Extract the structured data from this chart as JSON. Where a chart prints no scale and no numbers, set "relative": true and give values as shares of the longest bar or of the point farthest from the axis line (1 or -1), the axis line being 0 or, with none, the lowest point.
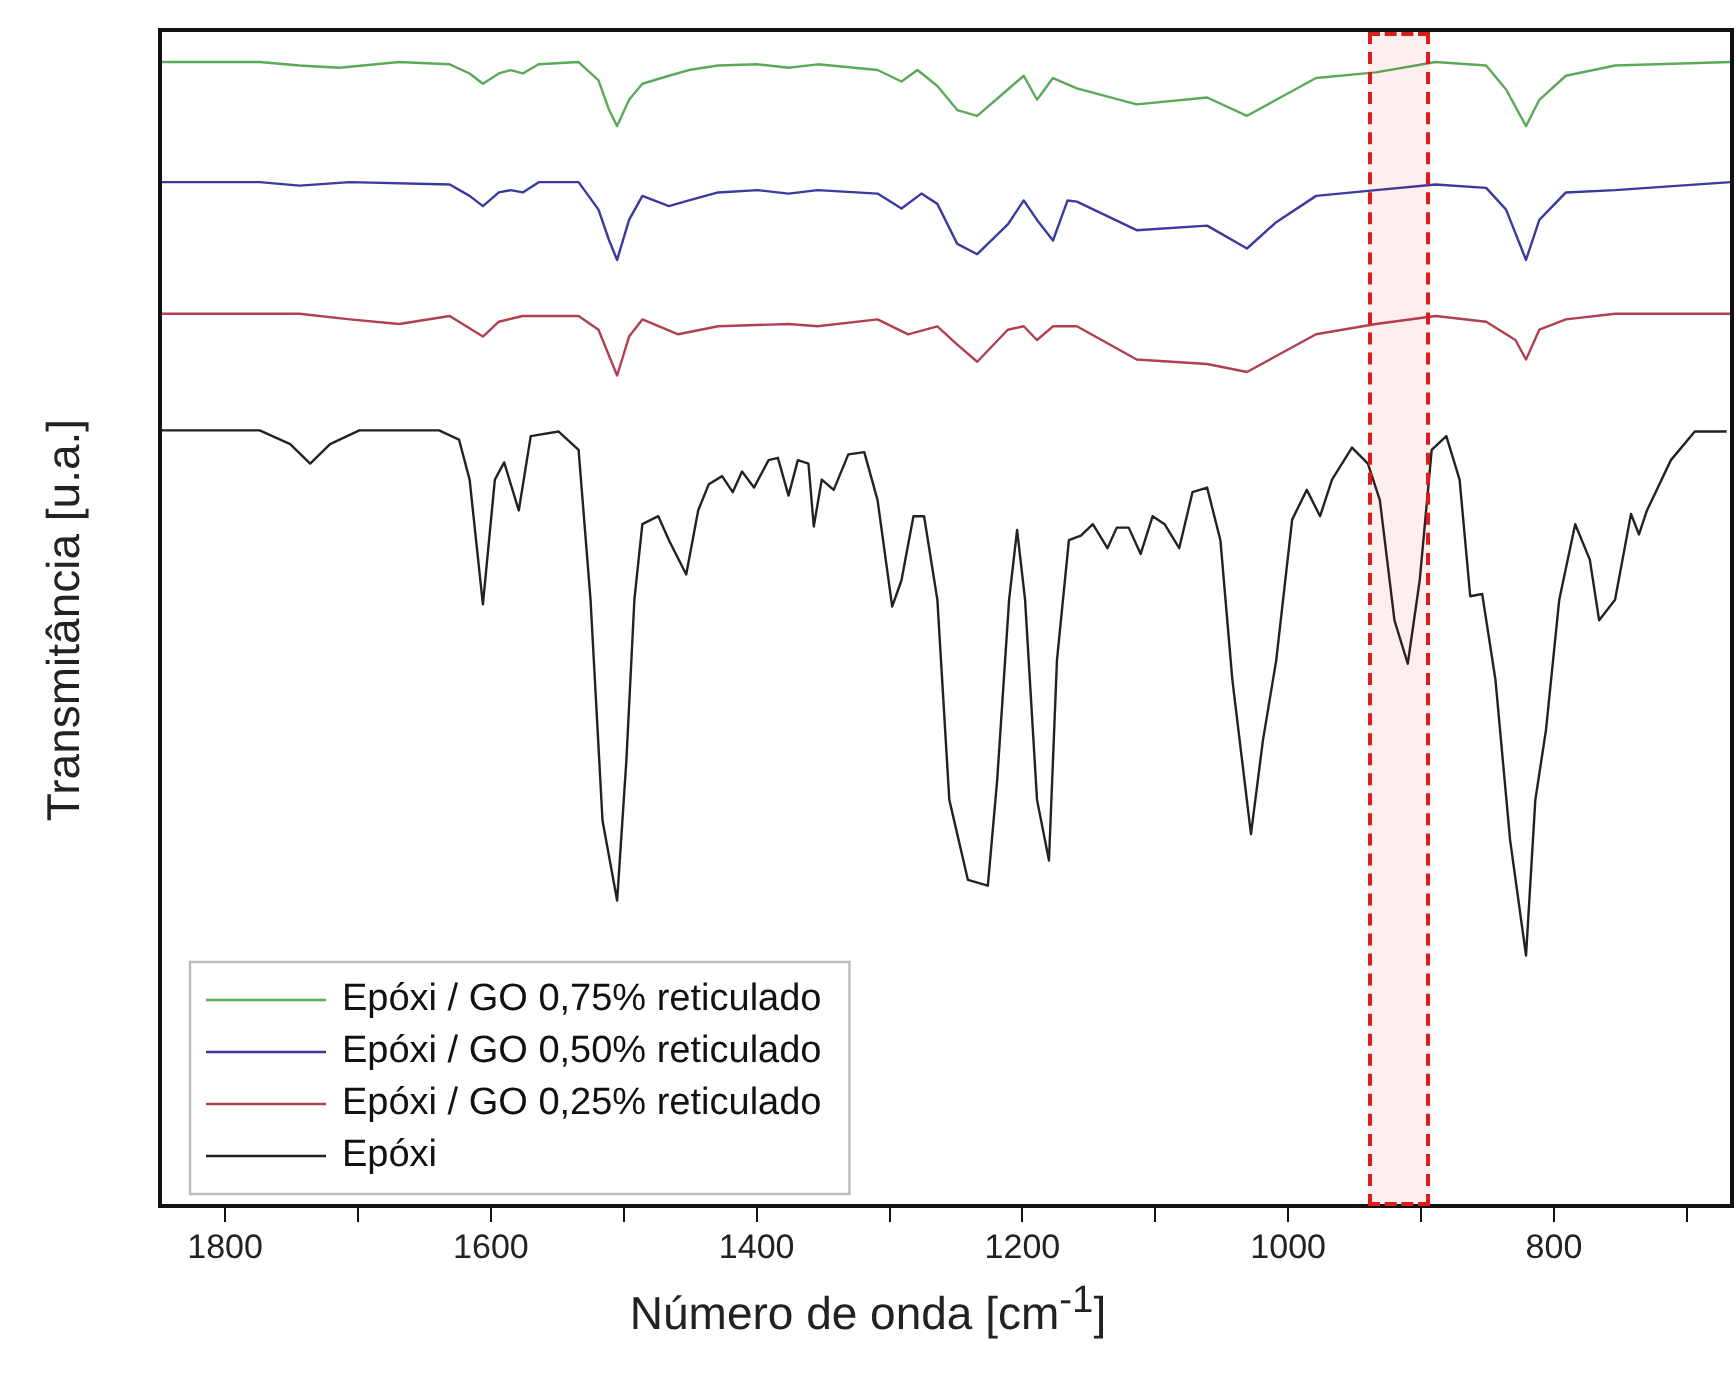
{
  "chart_data": {
    "type": "line",
    "xlabel": "Número de onda [cm$^{-1}$]",
    "ylabel": "Transmitância [u.a.]",
    "relative": true,
    "legend": "bottom left",
    "grid": false,
    "marker": "none",
    "line_style": "solid",
    "xlim": [
      1849,
      666
    ],
    "xticks": [
      1800,
      {
        "value": 1700,
        "label": null
      },
      1600,
      {
        "value": 1500,
        "label": null
      },
      1400,
      {
        "value": 1300,
        "label": null
      },
      1200,
      {
        "value": 1100,
        "label": null
      },
      1000,
      {
        "value": 900,
        "label": null
      },
      800,
      {
        "value": 700,
        "label": null
      }
    ],
    "bands": [
      {
        "axis": "x",
        "from": 940,
        "to": 893,
        "color": "#dd1c1c"
      }
    ],
    "series": [
      {
        "name": "Epóxi / GO 0,75% reticulado",
        "color": "#5aaa5a",
        "x": [
          1849,
          1774,
          1744,
          1714,
          1669,
          1631,
          1616,
          1606,
          1594,
          1585,
          1576,
          1564,
          1534,
          1519,
          1511,
          1505,
          1496,
          1486,
          1466,
          1451,
          1429,
          1399,
          1376,
          1354,
          1309,
          1291,
          1279,
          1264,
          1249,
          1234,
          1211,
          1199,
          1189,
          1177,
          1159,
          1114,
          1061,
          1031,
          1009,
          979,
          934,
          889,
          851,
          836,
          821,
          811,
          791,
          754,
          667
        ],
        "values": [
          1.0,
          1.0,
          0.997,
          0.995,
          1.0,
          0.998,
          0.99,
          0.981,
          0.99,
          0.993,
          0.99,
          0.998,
          1.0,
          0.984,
          0.958,
          0.944,
          0.967,
          0.981,
          0.988,
          0.993,
          0.997,
          0.998,
          0.995,
          0.998,
          0.993,
          0.983,
          0.993,
          0.979,
          0.958,
          0.953,
          0.976,
          0.988,
          0.967,
          0.986,
          0.977,
          0.963,
          0.969,
          0.953,
          0.967,
          0.986,
          0.991,
          1.0,
          0.997,
          0.976,
          0.944,
          0.967,
          0.988,
          0.997,
          1.0
        ]
      },
      {
        "name": "Epóxi / GO 0,50% reticulado",
        "color": "#3a3aa0",
        "x": [
          1849,
          1774,
          1744,
          1706,
          1631,
          1616,
          1606,
          1594,
          1585,
          1576,
          1564,
          1534,
          1519,
          1511,
          1505,
          1496,
          1486,
          1466,
          1451,
          1429,
          1399,
          1376,
          1354,
          1309,
          1291,
          1276,
          1264,
          1249,
          1234,
          1211,
          1199,
          1189,
          1177,
          1166,
          1159,
          1114,
          1061,
          1031,
          1009,
          979,
          934,
          889,
          851,
          836,
          821,
          811,
          791,
          754,
          667
        ],
        "values": [
          0.895,
          0.895,
          0.892,
          0.895,
          0.893,
          0.883,
          0.874,
          0.886,
          0.888,
          0.886,
          0.895,
          0.895,
          0.871,
          0.844,
          0.827,
          0.862,
          0.883,
          0.874,
          0.879,
          0.886,
          0.888,
          0.885,
          0.888,
          0.885,
          0.872,
          0.885,
          0.876,
          0.841,
          0.832,
          0.858,
          0.879,
          0.862,
          0.844,
          0.879,
          0.878,
          0.853,
          0.857,
          0.837,
          0.86,
          0.883,
          0.888,
          0.893,
          0.89,
          0.871,
          0.827,
          0.862,
          0.886,
          0.888,
          0.895
        ]
      },
      {
        "name": "Epóxi / GO 0,25% reticulado",
        "color": "#b04050",
        "x": [
          1849,
          1744,
          1706,
          1669,
          1631,
          1606,
          1594,
          1576,
          1534,
          1519,
          1511,
          1505,
          1496,
          1486,
          1459,
          1429,
          1376,
          1354,
          1309,
          1286,
          1264,
          1249,
          1234,
          1211,
          1199,
          1189,
          1177,
          1159,
          1114,
          1061,
          1031,
          1009,
          979,
          934,
          889,
          851,
          829,
          821,
          811,
          791,
          754,
          667
        ],
        "values": [
          0.78,
          0.78,
          0.775,
          0.771,
          0.778,
          0.76,
          0.773,
          0.778,
          0.778,
          0.766,
          0.743,
          0.726,
          0.76,
          0.775,
          0.762,
          0.769,
          0.771,
          0.769,
          0.775,
          0.762,
          0.769,
          0.753,
          0.738,
          0.766,
          0.769,
          0.757,
          0.769,
          0.769,
          0.74,
          0.736,
          0.729,
          0.743,
          0.762,
          0.771,
          0.778,
          0.773,
          0.757,
          0.74,
          0.766,
          0.775,
          0.78,
          0.78
        ]
      },
      {
        "name": "Epóxi",
        "color": "#222222",
        "x": [
          1849,
          1774,
          1751,
          1736,
          1721,
          1699,
          1639,
          1624,
          1616,
          1606,
          1597,
          1590,
          1579,
          1570,
          1549,
          1534,
          1525,
          1516,
          1505,
          1498,
          1492,
          1486,
          1474,
          1466,
          1453,
          1444,
          1436,
          1426,
          1418,
          1411,
          1402,
          1391,
          1384,
          1376,
          1369,
          1361,
          1357,
          1351,
          1342,
          1331,
          1319,
          1309,
          1298,
          1291,
          1282,
          1274,
          1264,
          1255,
          1241,
          1226,
          1219,
          1210,
          1204,
          1198,
          1189,
          1180,
          1174,
          1165,
          1156,
          1147,
          1136,
          1129,
          1120,
          1111,
          1102,
          1093,
          1082,
          1072,
          1061,
          1051,
          1042,
          1028,
          1019,
          1009,
          997,
          986,
          976,
          967,
          952,
          940,
          931,
          920,
          910,
          901,
          892,
          881,
          871,
          863,
          854,
          844,
          833,
          821,
          814,
          806,
          796,
          784,
          773,
          766,
          754,
          742,
          736,
          730,
          712,
          694,
          670
        ],
        "values": [
          0.678,
          0.678,
          0.666,
          0.649,
          0.666,
          0.678,
          0.678,
          0.67,
          0.635,
          0.526,
          0.635,
          0.65,
          0.608,
          0.673,
          0.677,
          0.661,
          0.53,
          0.337,
          0.267,
          0.39,
          0.53,
          0.596,
          0.603,
          0.582,
          0.552,
          0.608,
          0.631,
          0.638,
          0.624,
          0.642,
          0.628,
          0.652,
          0.654,
          0.621,
          0.652,
          0.649,
          0.594,
          0.635,
          0.626,
          0.657,
          0.659,
          0.617,
          0.524,
          0.547,
          0.603,
          0.603,
          0.53,
          0.355,
          0.285,
          0.28,
          0.372,
          0.53,
          0.591,
          0.53,
          0.355,
          0.302,
          0.477,
          0.582,
          0.586,
          0.596,
          0.575,
          0.593,
          0.593,
          0.57,
          0.603,
          0.596,
          0.575,
          0.624,
          0.628,
          0.582,
          0.46,
          0.325,
          0.407,
          0.477,
          0.6,
          0.626,
          0.603,
          0.635,
          0.663,
          0.649,
          0.617,
          0.512,
          0.474,
          0.547,
          0.661,
          0.673,
          0.635,
          0.533,
          0.535,
          0.46,
          0.32,
          0.219,
          0.355,
          0.416,
          0.53,
          0.596,
          0.565,
          0.512,
          0.53,
          0.605,
          0.587,
          0.608,
          0.652,
          0.677,
          0.677
        ]
      }
    ]
  }
}
